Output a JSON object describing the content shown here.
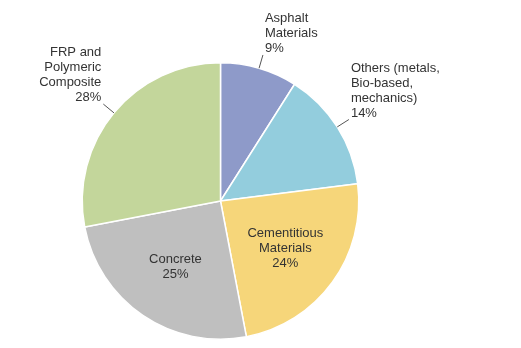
{
  "chart_data": {
    "type": "pie",
    "categories": [
      "Asphalt Materials",
      "Others (metals, Bio-based, mechanics)",
      "Cementitious Materials",
      "Concrete",
      "FRP and Polymeric Composite"
    ],
    "values": [
      9,
      14,
      24,
      25,
      28
    ],
    "value_labels": [
      "9%",
      "14%",
      "24%",
      "25%",
      "28%"
    ],
    "colors": [
      "#8e9ac9",
      "#93cddd",
      "#f6d67a",
      "#bfbfbf",
      "#c3d69b"
    ],
    "data_labels": true
  }
}
